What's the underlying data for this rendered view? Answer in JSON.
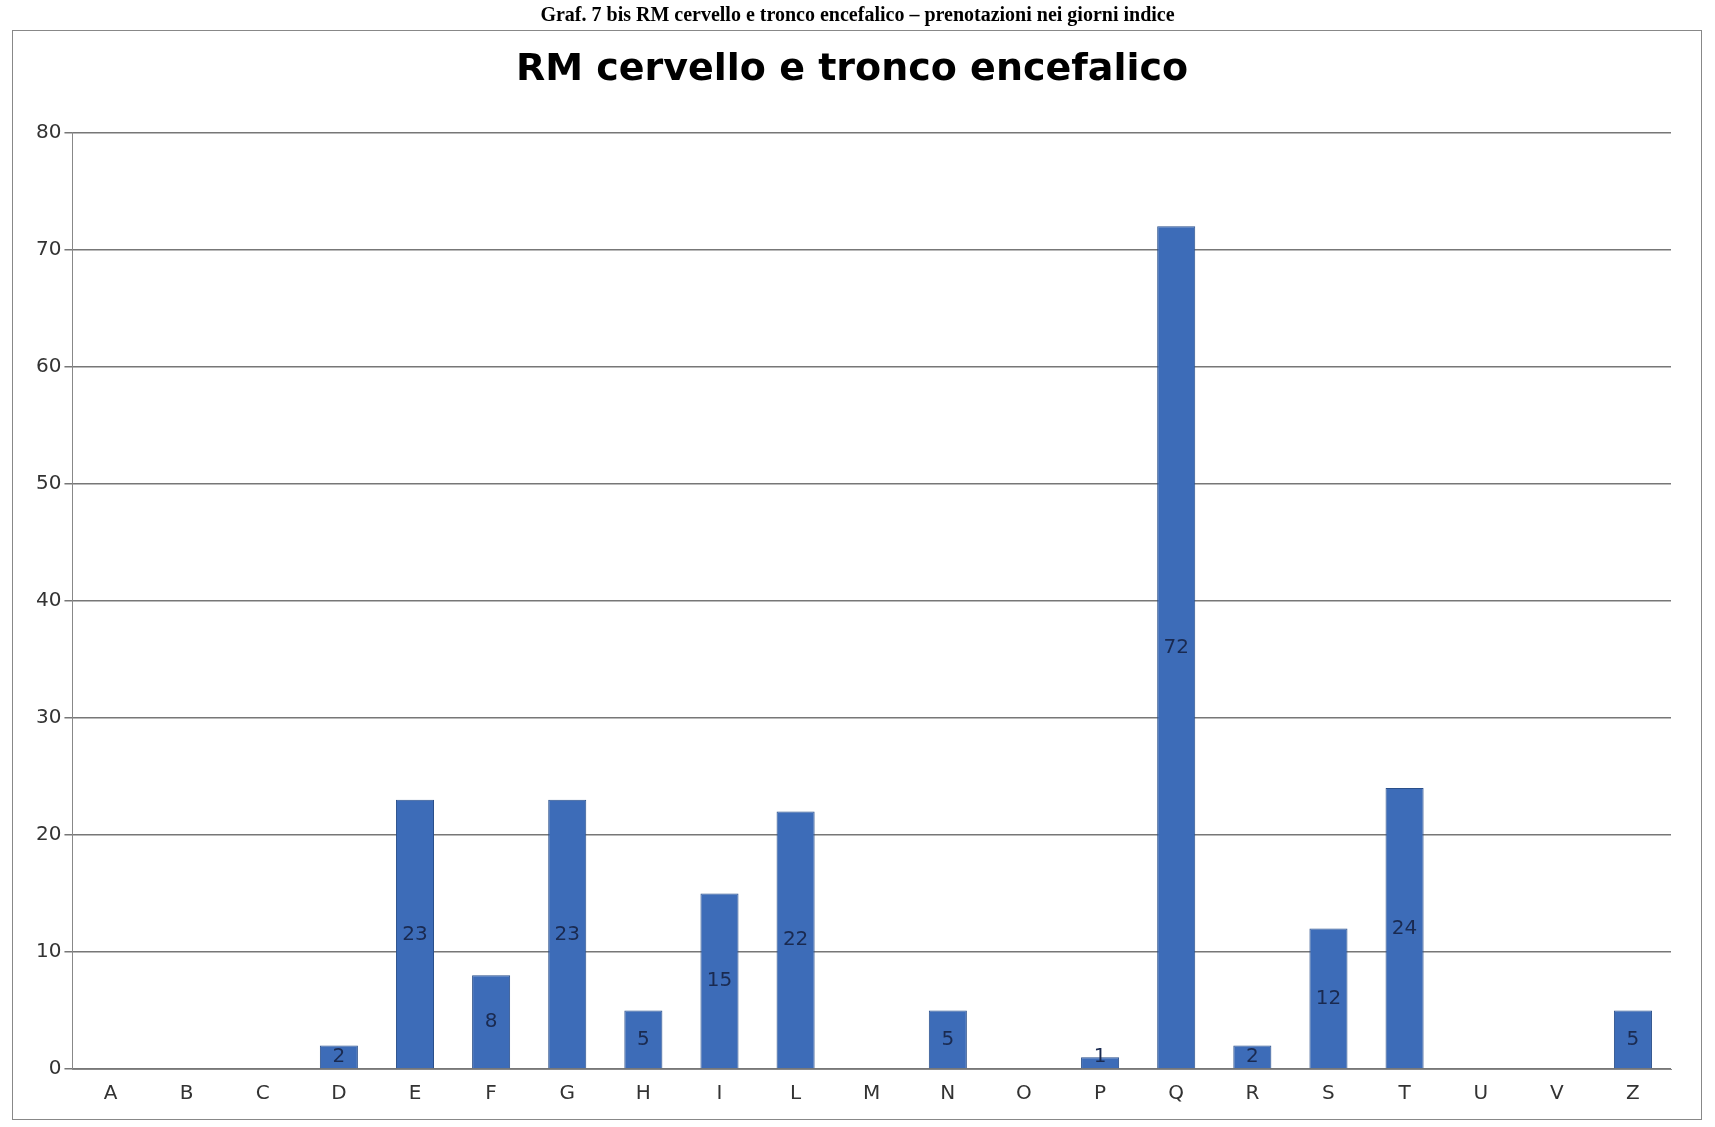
{
  "chart_data": {
    "type": "bar",
    "title": "RM cervello e tronco encefalico",
    "annotations": [
      "Graf. 7 bis RM cervello e tronco encefalico – prenotazioni nei giorni indice"
    ],
    "categories": [
      "A",
      "B",
      "C",
      "D",
      "E",
      "F",
      "G",
      "H",
      "I",
      "L",
      "M",
      "N",
      "O",
      "P",
      "Q",
      "R",
      "S",
      "T",
      "U",
      "V",
      "Z"
    ],
    "values": [
      0,
      0,
      0,
      2,
      23,
      8,
      23,
      5,
      15,
      22,
      0,
      5,
      0,
      1,
      72,
      2,
      12,
      24,
      0,
      0,
      5
    ],
    "value_labels": [
      null,
      null,
      null,
      "2",
      "23",
      "8",
      "23",
      "5",
      "15",
      "22",
      null,
      "5",
      null,
      "1",
      "72",
      "2",
      "12",
      "24",
      null,
      null,
      "5"
    ],
    "color": "#3d6cb8",
    "ylim": [
      0,
      80
    ],
    "yticks": [
      0,
      10,
      20,
      30,
      40,
      50,
      60,
      70,
      80
    ],
    "grid": "y",
    "legend": false
  }
}
